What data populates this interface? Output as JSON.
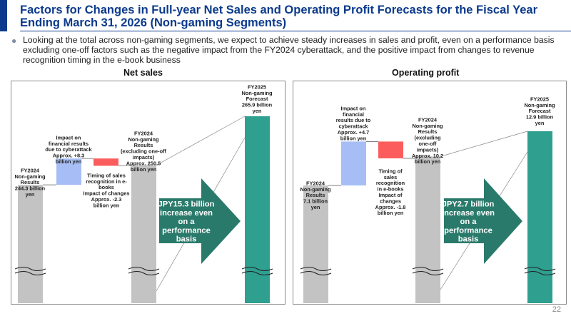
{
  "slide": {
    "title": "Factors for Changes in Full-year Net Sales and Operating Profit Forecasts for the Fiscal Year Ending March 31, 2026 (Non-gaming Segments)",
    "bullet": "Looking at the total across non-gaming segments, we expect to achieve steady increases in sales and profit, even on a performance basis excluding one-off factors such as the negative impact from the FY2024 cyberattack, and the positive impact from changes to revenue recognition timing in the e-book business",
    "page_number": "22"
  },
  "colors": {
    "title": "#0b3a8c",
    "gray_bar": "#c3c3c3",
    "increase_bar": "#a6bef5",
    "decrease_bar": "#fb5d5d",
    "forecast_bar": "#2f9f8f",
    "arrow": "#2a7a6b"
  },
  "chart_data": [
    {
      "type": "bar",
      "subtype": "waterfall",
      "title": "Net sales",
      "unit": "billion yen",
      "axis_break": true,
      "categories": [
        "FY2024 Non-gaming Results",
        "Impact on financial results due to cyberattack",
        "Timing of sales recognition in e-books",
        "FY2024 Non-gaming Results (excluding one-off impacts)",
        "FY2025 Non-gaming Forecast"
      ],
      "values": [
        244.3,
        8.3,
        -2.3,
        250.5,
        265.9
      ],
      "labels": [
        [
          "FY2024",
          "Non-gaming",
          "Results",
          "244.3 billion",
          "yen"
        ],
        [
          "Impact on",
          "financial results",
          "due to cyberattack",
          "Approx. +8.3",
          "billion yen"
        ],
        [
          "Timing of sales",
          "recognition in e-",
          "books",
          "Impact of changes",
          "Approx. -2.3",
          "billion yen"
        ],
        [
          "FY2024",
          "Non-gaming",
          "Results",
          "(excluding one-off",
          "impacts)",
          "Approx. 250.5",
          "billion yen"
        ],
        [
          "FY2025",
          "Non-gaming",
          "Forecast",
          "265.9 billion",
          "yen"
        ]
      ],
      "arrow_text": [
        "JPY15.3 billion",
        "increase even",
        "on a",
        "performance",
        "basis"
      ]
    },
    {
      "type": "bar",
      "subtype": "waterfall",
      "title": "Operating profit",
      "unit": "billion yen",
      "axis_break": true,
      "categories": [
        "FY2024 Non-gaming Results",
        "Impact on financial results due to cyberattack",
        "Timing of sales recognition in e-books",
        "FY2024 Non-gaming Results (excluding one-off impacts)",
        "FY2025 Non-gaming Forecast"
      ],
      "values": [
        7.1,
        4.7,
        -1.8,
        10.2,
        12.9
      ],
      "labels": [
        [
          "FY2024",
          "Non-gaming",
          "Results",
          "7.1 billion",
          "yen"
        ],
        [
          "Impact on",
          "financial",
          "results due to",
          "cyberattack",
          "Approx. +4.7",
          "billion yen"
        ],
        [
          "Timing of",
          "sales",
          "recognition",
          "in e-books",
          "Impact of",
          "changes",
          "Approx. -1.8",
          "billion yen"
        ],
        [
          "FY2024",
          "Non-gaming",
          "Results",
          "(excluding",
          "one-off",
          "impacts)",
          "Approx. 10.2",
          "billion yen"
        ],
        [
          "FY2025",
          "Non-gaming",
          "Forecast",
          "12.9 billion",
          "yen"
        ]
      ],
      "arrow_text": [
        "JPY2.7 billion",
        "increase even",
        "on a",
        "performance",
        "basis"
      ]
    }
  ]
}
